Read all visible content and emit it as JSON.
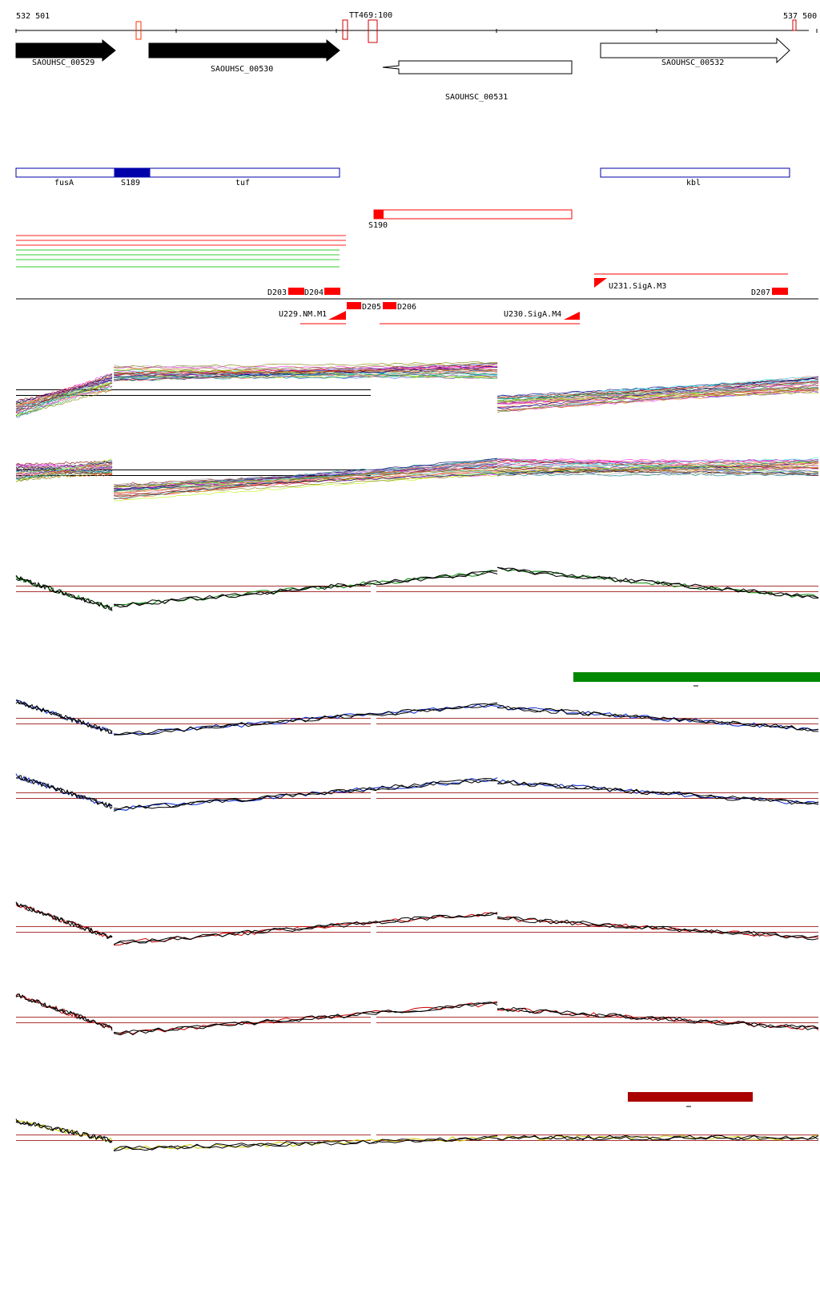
{
  "coords": {
    "left": "532 501",
    "right": "537 500",
    "terminator": "TT469:100"
  },
  "genes": [
    {
      "label": "SAOUHSC_00529",
      "strand": "+",
      "fill": "#000000"
    },
    {
      "label": "SAOUHSC_00530",
      "strand": "+",
      "fill": "#000000"
    },
    {
      "label": "SAOUHSC_00531",
      "strand": "-",
      "fill": "#ffffff"
    },
    {
      "label": "SAOUHSC_00532",
      "strand": "+",
      "fill": "#ffffff"
    }
  ],
  "annotations": {
    "blue_track": {
      "color": "#0000aa",
      "labels": [
        "fusA",
        "S189",
        "tuf",
        "kbl"
      ]
    },
    "red_track": {
      "color": "#ff0000",
      "labels": [
        "S190"
      ]
    }
  },
  "segments": {
    "labels": [
      "D203",
      "D204",
      "D205",
      "D206",
      "D207",
      "U229.NM.M1",
      "U230.SigA.M4",
      "U231.SigA.M3"
    ]
  },
  "color_key": {
    "green": "#008800",
    "blue": "#0022cc",
    "red": "#cc0000",
    "yellow": "#cccc00",
    "threshold": "#aa3333",
    "green_bar": "#008800",
    "red_bar": "#aa0000"
  },
  "chart_data": [
    {
      "type": "line",
      "panel": "all conditions, + strand",
      "regions": [
        {
          "x_start": 532501,
          "x_end": 533100,
          "y_start": 0.2,
          "y_end": 0.7
        },
        {
          "x_start": 533110,
          "x_end": 535500,
          "y_start": 0.85,
          "y_end": 0.9
        },
        {
          "x_start": 535500,
          "x_end": 537500,
          "y_start": 0.3,
          "y_end": 0.65
        }
      ]
    },
    {
      "type": "line",
      "panel": "all conditions, - strand",
      "regions": [
        {
          "x_start": 532501,
          "x_end": 533100,
          "y_start": 0.5,
          "y_end": 0.6
        },
        {
          "x_start": 533110,
          "x_end": 535500,
          "y_start": 0.15,
          "y_end": 0.6
        },
        {
          "x_start": 535500,
          "x_end": 537500,
          "y_start": 0.6,
          "y_end": 0.6
        }
      ]
    },
    {
      "type": "line",
      "panel": "green series",
      "regions": [
        {
          "x_start": 532501,
          "x_end": 533100,
          "y_start": 0.7,
          "y_end": 0.15
        },
        {
          "x_start": 533110,
          "x_end": 535500,
          "y_start": 0.2,
          "y_end": 0.8
        },
        {
          "x_start": 535500,
          "x_end": 537500,
          "y_start": 0.85,
          "y_end": 0.35
        }
      ]
    },
    {
      "type": "line",
      "panel": "blue series",
      "regions": [
        {
          "x_start": 532501,
          "x_end": 533100,
          "y_start": 0.85,
          "y_end": 0.3
        },
        {
          "x_start": 533110,
          "x_end": 535500,
          "y_start": 0.25,
          "y_end": 0.8
        },
        {
          "x_start": 535500,
          "x_end": 537500,
          "y_start": 0.75,
          "y_end": 0.35
        }
      ]
    },
    {
      "type": "line",
      "panel": "red series",
      "regions": [
        {
          "x_start": 532501,
          "x_end": 533100,
          "y_start": 0.95,
          "y_end": 0.35
        },
        {
          "x_start": 533110,
          "x_end": 535500,
          "y_start": 0.25,
          "y_end": 0.8
        },
        {
          "x_start": 535500,
          "x_end": 537500,
          "y_start": 0.7,
          "y_end": 0.35
        }
      ]
    },
    {
      "type": "line",
      "panel": "yellow series",
      "regions": [
        {
          "x_start": 532501,
          "x_end": 533100,
          "y_start": 0.8,
          "y_end": 0.45
        },
        {
          "x_start": 533110,
          "x_end": 535500,
          "y_start": 0.3,
          "y_end": 0.5
        },
        {
          "x_start": 535500,
          "x_end": 537500,
          "y_start": 0.5,
          "y_end": 0.5
        }
      ]
    }
  ]
}
